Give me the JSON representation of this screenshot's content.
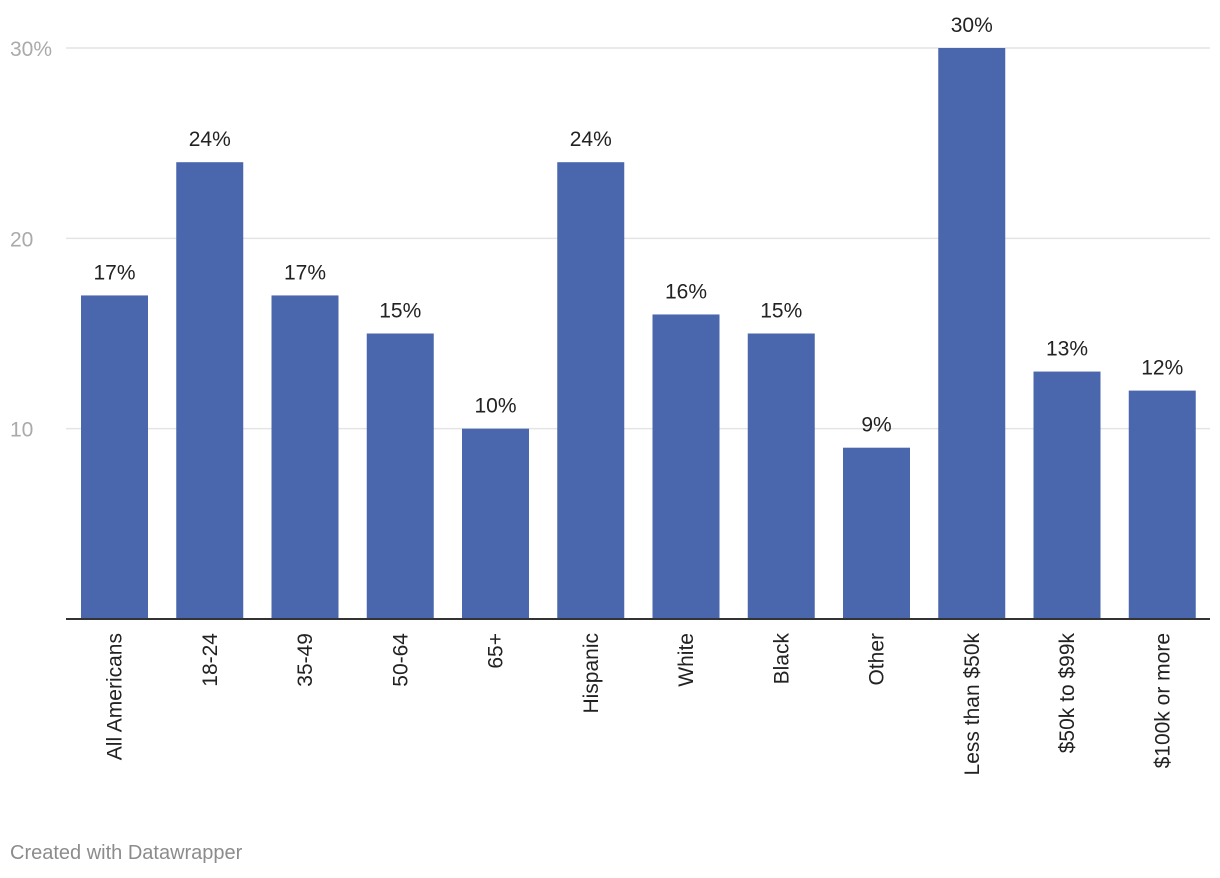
{
  "chart_data": {
    "type": "bar",
    "categories": [
      "All Americans",
      "18-24",
      "35-49",
      "50-64",
      "65+",
      "Hispanic",
      "White",
      "Black",
      "Other",
      "Less than $50k",
      "$50k to $99k",
      "$100k or more"
    ],
    "values": [
      17,
      24,
      17,
      15,
      10,
      24,
      16,
      15,
      9,
      30,
      13,
      12
    ],
    "value_labels": [
      "17%",
      "24%",
      "17%",
      "15%",
      "10%",
      "24%",
      "16%",
      "15%",
      "9%",
      "30%",
      "13%",
      "12%"
    ],
    "yticks": [
      10,
      20,
      30
    ],
    "ytick_labels": [
      "10",
      "20",
      "30%"
    ],
    "ylim": [
      0,
      30
    ],
    "title": "",
    "xlabel": "",
    "ylabel": "",
    "grid": true,
    "bar_color": "#4a66ac",
    "grid_color": "#e4e4e4",
    "axis_color": "#333333",
    "tick_label_color": "#aaaaaa",
    "label_color": "#222222"
  },
  "credit": "Created with Datawrapper"
}
